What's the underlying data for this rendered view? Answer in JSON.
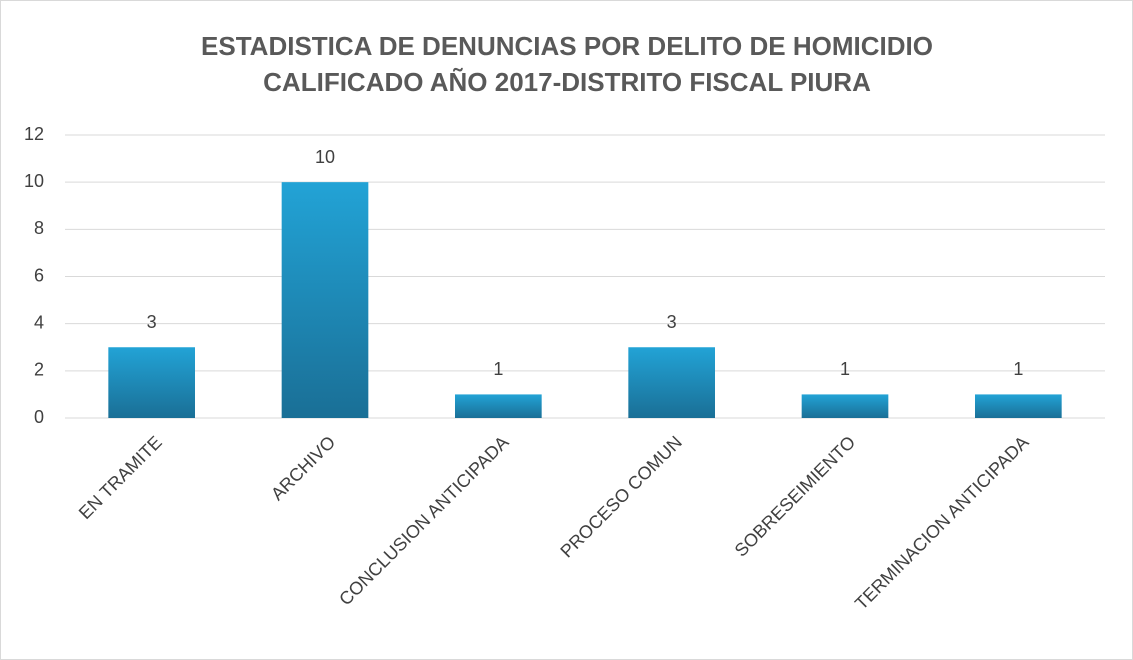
{
  "chart_data": {
    "type": "bar",
    "title": [
      "ESTADISTICA DE DENUNCIAS POR DELITO DE HOMICIDIO",
      "CALIFICADO AÑO 2017-DISTRITO FISCAL PIURA"
    ],
    "categories": [
      "EN TRAMITE",
      "ARCHIVO",
      "CONCLUSION ANTICIPADA",
      "PROCESO COMUN",
      "SOBRESEIMIENTO",
      "TERMINACION ANTICIPADA"
    ],
    "values": [
      3,
      10,
      1,
      3,
      1,
      1
    ],
    "color": [
      "#22a3d6",
      "#1a6f96"
    ],
    "ylim": [
      0,
      12
    ],
    "yticks": [
      0,
      2,
      4,
      6,
      8,
      10,
      12
    ],
    "grid": true
  }
}
